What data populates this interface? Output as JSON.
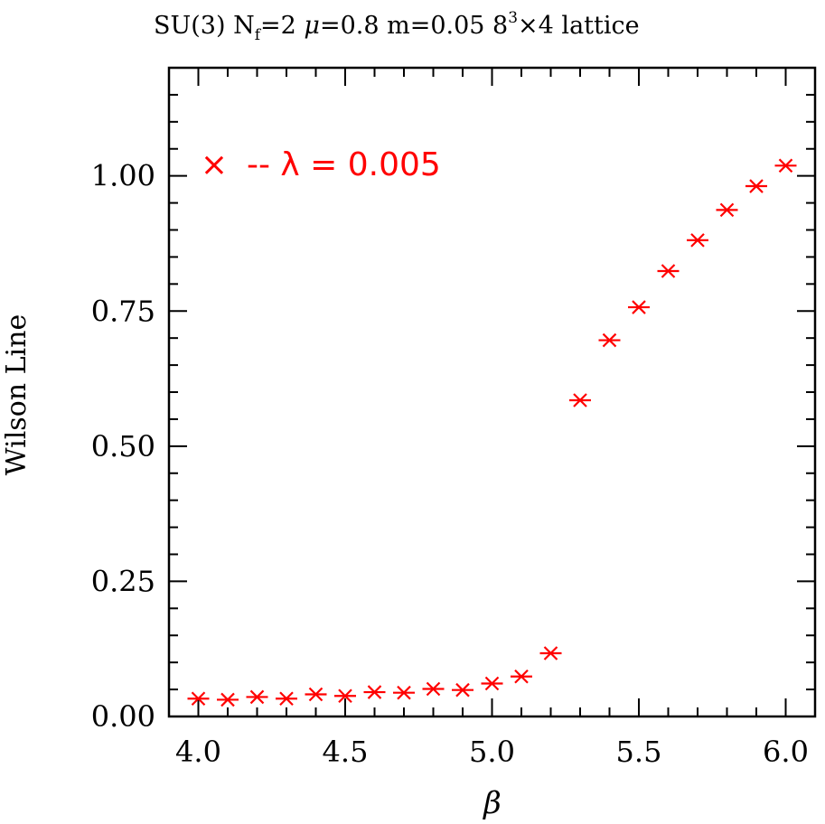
{
  "chart_data": {
    "type": "scatter",
    "title_parts": {
      "prefix": "SU(3) N",
      "nf_sub": "f",
      "nf_eq": "=2 ",
      "mu": "μ",
      "mid": "=0.8 m=0.05 8",
      "sup": "3",
      "suffix": "×4 lattice"
    },
    "xlabel": "β",
    "ylabel": "Wilson Line",
    "xlim": [
      3.9,
      6.1
    ],
    "ylim": [
      0.0,
      1.2
    ],
    "x_ticks": [
      "4.0",
      "4.5",
      "5.0",
      "5.5",
      "6.0"
    ],
    "y_ticks": [
      "0.00",
      "0.25",
      "0.50",
      "0.75",
      "1.00"
    ],
    "legend": {
      "marker": "×",
      "label": "-- λ = 0.005",
      "color": "#ff0000",
      "position": "top-left"
    },
    "series": [
      {
        "marker": "x-with-errorbar",
        "color": "#ff0000",
        "points": [
          {
            "x": 4.0,
            "y": 0.033
          },
          {
            "x": 4.1,
            "y": 0.031
          },
          {
            "x": 4.2,
            "y": 0.036
          },
          {
            "x": 4.3,
            "y": 0.033
          },
          {
            "x": 4.4,
            "y": 0.041
          },
          {
            "x": 4.5,
            "y": 0.038
          },
          {
            "x": 4.6,
            "y": 0.045
          },
          {
            "x": 4.7,
            "y": 0.044
          },
          {
            "x": 4.8,
            "y": 0.051
          },
          {
            "x": 4.9,
            "y": 0.049
          },
          {
            "x": 5.0,
            "y": 0.061
          },
          {
            "x": 5.1,
            "y": 0.074
          },
          {
            "x": 5.2,
            "y": 0.117
          },
          {
            "x": 5.3,
            "y": 0.585
          },
          {
            "x": 5.4,
            "y": 0.696
          },
          {
            "x": 5.5,
            "y": 0.757
          },
          {
            "x": 5.6,
            "y": 0.824
          },
          {
            "x": 5.7,
            "y": 0.881
          },
          {
            "x": 5.8,
            "y": 0.937
          },
          {
            "x": 5.9,
            "y": 0.981
          },
          {
            "x": 6.0,
            "y": 1.019
          }
        ]
      }
    ]
  }
}
